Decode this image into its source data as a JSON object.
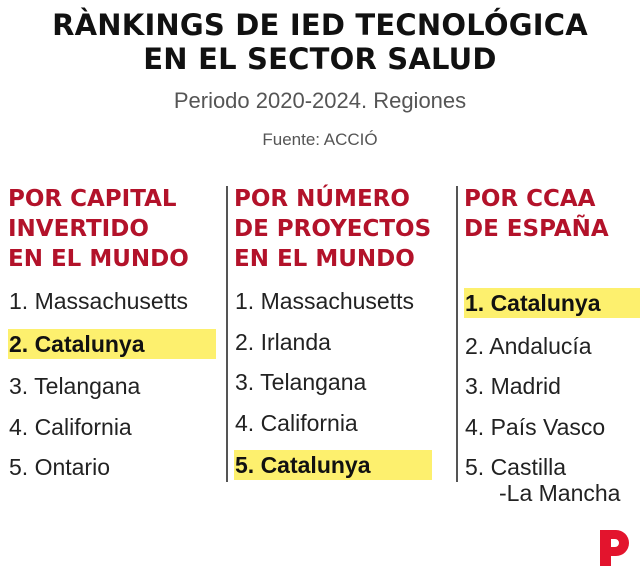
{
  "title_line1": "RÀNKINGS DE IED TECNOLÓGICA",
  "title_line2": "EN EL SECTOR SALUD",
  "subtitle": "Periodo 2020-2024. Regiones",
  "source": "Fuente: ACCIÓ",
  "highlight_color": "#fdf06e",
  "heading_color": "#b3122a",
  "logo_icon": "brand-p-logo",
  "columns": [
    {
      "heading": [
        "POR CAPITAL",
        "INVERTIDO",
        "EN EL MUNDO"
      ],
      "items": [
        "1. Massachusetts",
        "2. Catalunya",
        "3. Telangana",
        "4. California",
        "5. Ontario"
      ]
    },
    {
      "heading": [
        "POR NÚMERO",
        "DE PROYECTOS",
        "EN EL MUNDO"
      ],
      "items": [
        "1. Massachusetts",
        "2. Irlanda",
        "3. Telangana",
        "4. California",
        "5. Catalunya"
      ]
    },
    {
      "heading": [
        "POR CCAA",
        "DE ESPAÑA",
        ""
      ],
      "items": [
        "1. Catalunya",
        "2. Andalucía",
        "3. Madrid",
        "4. País Vasco",
        "5. Castilla",
        "-La Mancha"
      ]
    }
  ]
}
